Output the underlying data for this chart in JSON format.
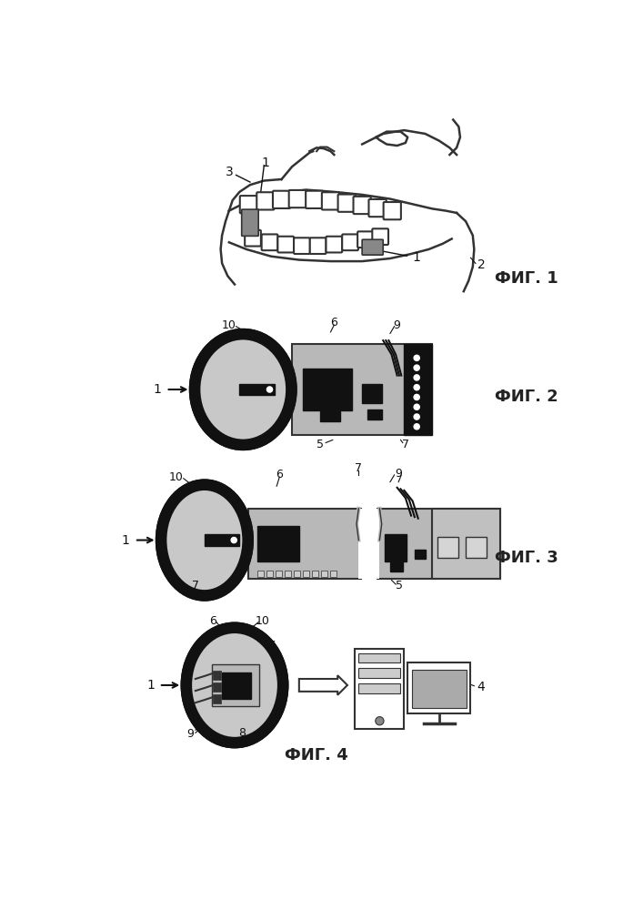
{
  "bg_color": "#ffffff",
  "fig_label_color": "#222222",
  "fig1_label": "ФИГ. 1",
  "fig2_label": "ФИГ. 2",
  "fig3_label": "ФИГ. 3",
  "fig4_label": "ФИГ. 4",
  "font_size_label": 13,
  "font_size_number": 10,
  "gray_disk": "#c8c8c8",
  "light_gray_board": "#b8b8b8",
  "dark": "#111111",
  "mid_gray": "#888888",
  "sensor_gray": "#888888",
  "line_color": "#333333"
}
